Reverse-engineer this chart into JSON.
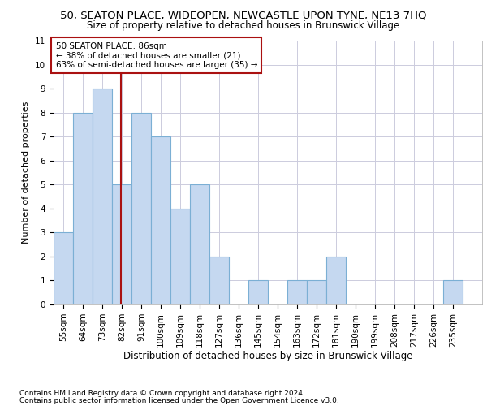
{
  "title1": "50, SEATON PLACE, WIDEOPEN, NEWCASTLE UPON TYNE, NE13 7HQ",
  "title2": "Size of property relative to detached houses in Brunswick Village",
  "xlabel": "Distribution of detached houses by size in Brunswick Village",
  "ylabel": "Number of detached properties",
  "footer1": "Contains HM Land Registry data © Crown copyright and database right 2024.",
  "footer2": "Contains public sector information licensed under the Open Government Licence v3.0.",
  "annotation_line1": "50 SEATON PLACE: 86sqm",
  "annotation_line2": "← 38% of detached houses are smaller (21)",
  "annotation_line3": "63% of semi-detached houses are larger (35) →",
  "property_size": 86,
  "categories": [
    "55sqm",
    "64sqm",
    "73sqm",
    "82sqm",
    "91sqm",
    "100sqm",
    "109sqm",
    "118sqm",
    "127sqm",
    "136sqm",
    "145sqm",
    "154sqm",
    "163sqm",
    "172sqm",
    "181sqm",
    "190sqm",
    "199sqm",
    "208sqm",
    "217sqm",
    "226sqm",
    "235sqm"
  ],
  "bin_edges": [
    55,
    64,
    73,
    82,
    91,
    100,
    109,
    118,
    127,
    136,
    145,
    154,
    163,
    172,
    181,
    190,
    199,
    208,
    217,
    226,
    235,
    244
  ],
  "values": [
    3,
    8,
    9,
    5,
    8,
    7,
    4,
    5,
    2,
    0,
    1,
    0,
    1,
    1,
    2,
    0,
    0,
    0,
    0,
    0,
    1
  ],
  "bar_color": "#c5d8f0",
  "bar_edgecolor": "#7bafd4",
  "bar_linewidth": 0.8,
  "vline_x": 86,
  "vline_color": "#aa1111",
  "vline_linewidth": 1.5,
  "annotation_box_edgecolor": "#aa1111",
  "annotation_box_facecolor": "#ffffff",
  "ylim": [
    0,
    11
  ],
  "yticks": [
    0,
    1,
    2,
    3,
    4,
    5,
    6,
    7,
    8,
    9,
    10,
    11
  ],
  "grid_color": "#ccccdd",
  "title1_fontsize": 9.5,
  "title2_fontsize": 8.5,
  "xlabel_fontsize": 8.5,
  "ylabel_fontsize": 8,
  "tick_fontsize": 7.5,
  "footer_fontsize": 6.5,
  "annotation_fontsize": 7.5
}
